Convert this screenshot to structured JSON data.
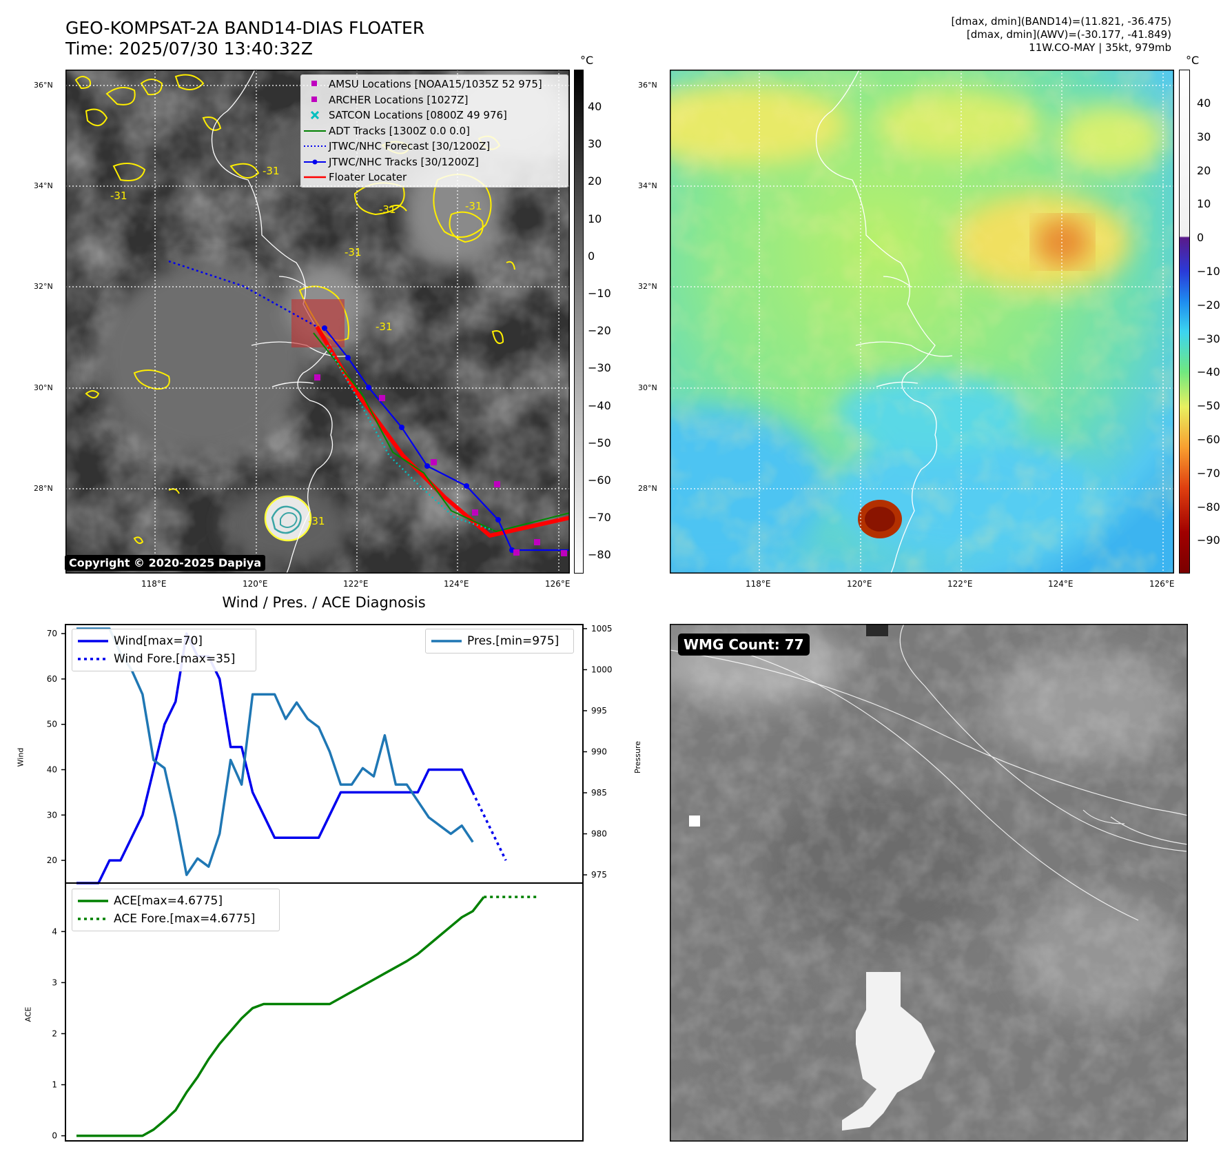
{
  "header": {
    "title_line1": "GEO-KOMPSAT-2A BAND14-DIAS FLOATER",
    "title_line2": "Time: 2025/07/30 13:40:32Z",
    "right_line1": "[dmax, dmin](BAND14)=(11.821, -36.475)",
    "right_line2": "[dmax, dmin](AWV)=(-30.177, -41.849)",
    "right_line3": "11W.CO-MAY | 35kt, 979mb"
  },
  "map_axes": {
    "lat_labels": [
      "36°N",
      "34°N",
      "32°N",
      "30°N",
      "28°N"
    ],
    "lon_labels": [
      "118°E",
      "120°E",
      "122°E",
      "124°E",
      "126°E"
    ]
  },
  "ir_map": {
    "legend": [
      {
        "label": "AMSU Locations [NOAA15/1035Z 52 975]",
        "symbol": "square-magenta"
      },
      {
        "label": "ARCHER Locations [1027Z]",
        "symbol": "square-magenta"
      },
      {
        "label": "SATCON Locations [0800Z 49 976]",
        "symbol": "x-cyan"
      },
      {
        "label": "ADT Tracks [1300Z 0.0 0.0]",
        "symbol": "line-green"
      },
      {
        "label": "JTWC/NHC Forecast [30/1200Z]",
        "symbol": "dotted-blue"
      },
      {
        "label": "JTWC/NHC Tracks [30/1200Z]",
        "symbol": "line-dot-blue"
      },
      {
        "label": "Floater Locater",
        "symbol": "line-red"
      }
    ],
    "contour_labels": [
      "-31",
      "-31",
      "-31",
      "-31",
      "-31",
      "-31",
      "-31"
    ],
    "copyright": "Copyright © 2020-2025 Dapiya",
    "colorbar": {
      "unit": "°C",
      "ticks": [
        "40",
        "30",
        "20",
        "10",
        "0",
        "−10",
        "−20",
        "−30",
        "−40",
        "−50",
        "−60",
        "−70",
        "−80"
      ]
    }
  },
  "awv_map": {
    "colorbar": {
      "unit": "°C",
      "ticks": [
        "40",
        "30",
        "20",
        "10",
        "0",
        "−10",
        "−20",
        "−30",
        "−40",
        "−50",
        "−60",
        "−70",
        "−80",
        "−90"
      ]
    }
  },
  "wmg": {
    "label": "WMG Count: 77"
  },
  "colors": {
    "wind": "#0000ee",
    "pressure": "#1f77b4",
    "ace": "#008000",
    "floater": "#ff0000",
    "magenta": "#bf00bf",
    "cyan": "#00bfbf",
    "contour": "#ffff00"
  },
  "chart_data": [
    {
      "type": "line",
      "title": "Wind / Pres. / ACE Diagnosis",
      "ylabel": "Wind",
      "y2label": "Pressure",
      "ylim": [
        15,
        72
      ],
      "y2lim": [
        974,
        1005.5
      ],
      "yticks": [
        20,
        30,
        40,
        50,
        60,
        70
      ],
      "y2ticks": [
        975,
        980,
        985,
        990,
        995,
        1000,
        1005
      ],
      "series": [
        {
          "name": "Wind[max=70]",
          "axis": "left",
          "style": "solid",
          "values": [
            15,
            15,
            15,
            20,
            20,
            25,
            30,
            40,
            50,
            55,
            70,
            65,
            65,
            60,
            45,
            45,
            35,
            30,
            25,
            25,
            25,
            25,
            25,
            30,
            35,
            35,
            35,
            35,
            35,
            35,
            35,
            35,
            40,
            40,
            40,
            40,
            35
          ]
        },
        {
          "name": "Wind Fore.[max=35]",
          "axis": "left",
          "style": "dotted",
          "start": 36,
          "values": [
            35,
            30,
            25,
            20
          ]
        },
        {
          "name": "Pres.[min=975]",
          "axis": "right",
          "style": "solid",
          "values": [
            1005,
            1005,
            1005,
            1005,
            1002,
            1000,
            997,
            989,
            988,
            982,
            975,
            977,
            976,
            980,
            989,
            986,
            997,
            997,
            997,
            994,
            996,
            994,
            993,
            990,
            986,
            986,
            988,
            987,
            992,
            986,
            986,
            984,
            982,
            981,
            980,
            981,
            979
          ]
        }
      ],
      "legend_left": [
        "Wind[max=70]",
        "Wind Fore.[max=35]"
      ],
      "legend_right": [
        "Pres.[min=975]"
      ]
    },
    {
      "type": "line",
      "ylabel": "ACE",
      "ylim": [
        -0.1,
        4.95
      ],
      "yticks": [
        0,
        1,
        2,
        3,
        4
      ],
      "series": [
        {
          "name": "ACE[max=4.6775]",
          "style": "solid",
          "values": [
            0,
            0,
            0,
            0,
            0,
            0,
            0,
            0.12,
            0.3,
            0.5,
            0.85,
            1.15,
            1.5,
            1.8,
            2.05,
            2.3,
            2.5,
            2.58,
            2.58,
            2.58,
            2.58,
            2.58,
            2.58,
            2.58,
            2.7,
            2.82,
            2.94,
            3.06,
            3.18,
            3.3,
            3.42,
            3.56,
            3.74,
            3.92,
            4.1,
            4.28,
            4.4,
            4.6775
          ]
        },
        {
          "name": "ACE Fore.[max=4.6775]",
          "style": "dotted",
          "start": 37,
          "values": [
            4.6775,
            4.6775,
            4.6775,
            4.6775,
            4.6775,
            4.6775
          ]
        }
      ]
    }
  ]
}
